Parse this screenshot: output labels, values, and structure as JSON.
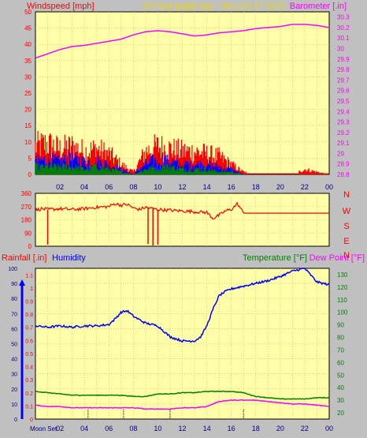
{
  "title": "24 hour graph day - January 27 2023",
  "colors": {
    "bg": "#c0c0c0",
    "plot": "#ffffaa",
    "grid": "#d8a878",
    "red": "#ff0000",
    "blue": "#0000ff",
    "green": "#008000",
    "magenta": "#ff00ff",
    "title": "#e8d800",
    "dark": "#000080"
  },
  "chart_data": [
    {
      "id": "wind-baro",
      "type": "line",
      "title": "24 hour graph day - January 27 2023",
      "left_label": "Windspeed [mph]",
      "right_label": "Barometer [.in]",
      "left_ticks": [
        "0",
        "5",
        "10",
        "15",
        "20",
        "25",
        "30",
        "35",
        "40",
        "45",
        "50"
      ],
      "right_ticks": [
        "28.8",
        "28.9",
        "29",
        "29.1",
        "29.2",
        "29.3",
        "29.4",
        "29.5",
        "29.6",
        "29.7",
        "29.8",
        "29.9",
        "30",
        "30.1",
        "30.2",
        "30.3"
      ],
      "x_ticks": [
        "02",
        "04",
        "06",
        "08",
        "10",
        "12",
        "14",
        "16",
        "18",
        "20",
        "22",
        "00"
      ],
      "xlim": [
        0,
        24
      ],
      "ylim_left": [
        0,
        50
      ],
      "ylim_right": [
        28.8,
        30.35
      ],
      "grid": true,
      "series": [
        {
          "name": "Barometer [.in]",
          "axis": "right",
          "color": "#ff00ff",
          "x": [
            0,
            1,
            2,
            3,
            4,
            5,
            6,
            7,
            8,
            9,
            10,
            11,
            12,
            13,
            14,
            15,
            16,
            17,
            18,
            19,
            20,
            21,
            22,
            23,
            24
          ],
          "y": [
            29.91,
            29.95,
            29.99,
            30.02,
            30.03,
            30.05,
            30.07,
            30.09,
            30.13,
            30.16,
            30.17,
            30.16,
            30.14,
            30.12,
            30.13,
            30.15,
            30.16,
            30.17,
            30.19,
            30.2,
            30.21,
            30.23,
            30.23,
            30.22,
            30.2
          ]
        },
        {
          "name": "Wind gust",
          "axis": "left",
          "color": "#ff0000",
          "style": "gust",
          "x": [
            0,
            1,
            2,
            3,
            4,
            5,
            6,
            7,
            8,
            9,
            10,
            11,
            12,
            13,
            14,
            15,
            16,
            17,
            18,
            19,
            20,
            21,
            22,
            23,
            24
          ],
          "y": [
            11,
            12,
            10,
            11,
            9,
            10,
            8,
            4,
            1,
            9,
            11,
            10,
            9,
            9,
            8,
            7,
            4,
            1,
            0,
            0,
            0,
            0,
            2,
            1,
            0
          ]
        },
        {
          "name": "Wind speed",
          "axis": "left",
          "color": "#0000ff",
          "style": "speed",
          "x": [
            0,
            1,
            2,
            3,
            4,
            5,
            6,
            7,
            8,
            9,
            10,
            11,
            12,
            13,
            14,
            15,
            16,
            17,
            18,
            19,
            20,
            21,
            22,
            23,
            24
          ],
          "y": [
            5,
            6,
            5,
            6,
            5,
            5,
            4,
            2,
            0,
            4,
            6,
            5,
            4,
            4,
            4,
            3,
            2,
            0,
            0,
            0,
            0,
            0,
            0,
            0,
            0
          ]
        },
        {
          "name": "Wind average",
          "axis": "left",
          "color": "#008000",
          "style": "avg",
          "x": [
            0,
            1,
            2,
            3,
            4,
            5,
            6,
            7,
            8,
            9,
            10,
            11,
            12,
            13,
            14,
            15,
            16,
            17,
            18,
            19,
            20,
            21,
            22,
            23,
            24
          ],
          "y": [
            3,
            3,
            3,
            3,
            2,
            3,
            2,
            1,
            0,
            2,
            3,
            3,
            2,
            2,
            2,
            1,
            1,
            0,
            0,
            0,
            0,
            0,
            0,
            0,
            0
          ]
        }
      ]
    },
    {
      "id": "wind-dir",
      "type": "line",
      "left_ticks": [
        "0",
        "90",
        "180",
        "270",
        "360"
      ],
      "right_ticks": [
        "N",
        "W",
        "S",
        "E",
        "N"
      ],
      "xlim": [
        0,
        24
      ],
      "ylim": [
        0,
        360
      ],
      "grid": true,
      "series": [
        {
          "name": "Wind direction",
          "color": "#ff0000",
          "x": [
            0,
            0.5,
            1,
            2,
            3,
            4,
            5,
            6,
            6.5,
            7,
            7.5,
            8,
            8.5,
            9,
            10,
            11,
            12,
            13,
            14,
            14.5,
            15,
            15.5,
            16,
            16.5,
            17,
            18,
            20,
            22,
            24
          ],
          "y": [
            245,
            255,
            250,
            255,
            250,
            255,
            265,
            270,
            290,
            280,
            285,
            260,
            250,
            265,
            250,
            245,
            240,
            235,
            230,
            190,
            210,
            240,
            250,
            290,
            225,
            225,
            225,
            225,
            225
          ]
        },
        {
          "name": "Direction spikes",
          "color": "#ff0000",
          "style": "spikes",
          "x": [
            1,
            9.2,
            9.6,
            10
          ],
          "y": [
            10,
            15,
            5,
            10
          ]
        }
      ]
    },
    {
      "id": "rain-hum-temp",
      "type": "line",
      "left_label_1": "Rainfall [.in]",
      "left_label_2": "Humidity",
      "right_label_1": "Temperature [°F]",
      "right_label_2": "Dew Point [°F]",
      "rain_ticks": [
        "0",
        "0.1",
        "0.2",
        "0.3",
        "0.4",
        "0.5",
        "0.6",
        "0.7",
        "0.8",
        "0.9",
        "1",
        "1.1"
      ],
      "humidity_ticks": [
        "0",
        "10",
        "20",
        "30",
        "40",
        "50",
        "60",
        "70",
        "80",
        "90",
        "100"
      ],
      "temp_ticks": [
        "20",
        "30",
        "40",
        "50",
        "60",
        "70",
        "80",
        "90",
        "100",
        "110",
        "120",
        "130"
      ],
      "x_ticks": [
        "02",
        "04",
        "06",
        "08",
        "10",
        "12",
        "14",
        "16",
        "18",
        "20",
        "22",
        "00"
      ],
      "moon_label": "Moon Set",
      "xlim": [
        0,
        24
      ],
      "ylim_humidity": [
        0,
        100
      ],
      "ylim_temp": [
        15,
        135
      ],
      "ylim_rain": [
        0,
        1.15
      ],
      "grid": true,
      "series": [
        {
          "name": "Humidity",
          "axis": "humidity",
          "color": "#0000ff",
          "x": [
            0,
            1,
            2,
            3,
            4,
            5,
            6,
            6.5,
            7,
            7.5,
            8,
            9,
            10,
            10.5,
            11,
            12,
            13,
            13.5,
            14,
            14.5,
            15,
            15.5,
            16,
            17,
            18,
            19,
            20,
            21,
            22,
            23,
            24
          ],
          "y": [
            68,
            67,
            68,
            67,
            68,
            68,
            69,
            73,
            78,
            79,
            75,
            70,
            68,
            64,
            60,
            57,
            57,
            60,
            68,
            80,
            90,
            93,
            95,
            97,
            99,
            101,
            104,
            108,
            110,
            100,
            98
          ]
        },
        {
          "name": "Temperature [°F]",
          "axis": "temp",
          "color": "#008000",
          "x": [
            0,
            1,
            2,
            3,
            4,
            5,
            6,
            7,
            8,
            9,
            10,
            11,
            12,
            13,
            14,
            15,
            16,
            17,
            18,
            19,
            20,
            21,
            22,
            23,
            24
          ],
          "y": [
            37,
            36,
            35,
            34,
            34,
            34,
            34,
            34,
            33,
            33,
            35,
            35,
            36,
            36,
            37,
            37,
            37,
            36,
            33,
            32,
            31,
            31,
            31,
            32,
            32
          ]
        },
        {
          "name": "Dew Point [°F]",
          "axis": "temp",
          "color": "#ff00ff",
          "x": [
            0,
            1,
            2,
            3,
            4,
            5,
            6,
            7,
            8,
            9,
            10,
            11,
            12,
            13,
            14,
            15,
            16,
            17,
            18,
            19,
            20,
            21,
            22,
            23,
            24
          ],
          "y": [
            26,
            25,
            25,
            24,
            24,
            24,
            24,
            24,
            24,
            23,
            23,
            23,
            24,
            24,
            25,
            29,
            30,
            30,
            30,
            29,
            28,
            27,
            27,
            26,
            25
          ]
        }
      ],
      "moon_marks": [
        4.3,
        7.2,
        11.0,
        17.0
      ]
    }
  ]
}
